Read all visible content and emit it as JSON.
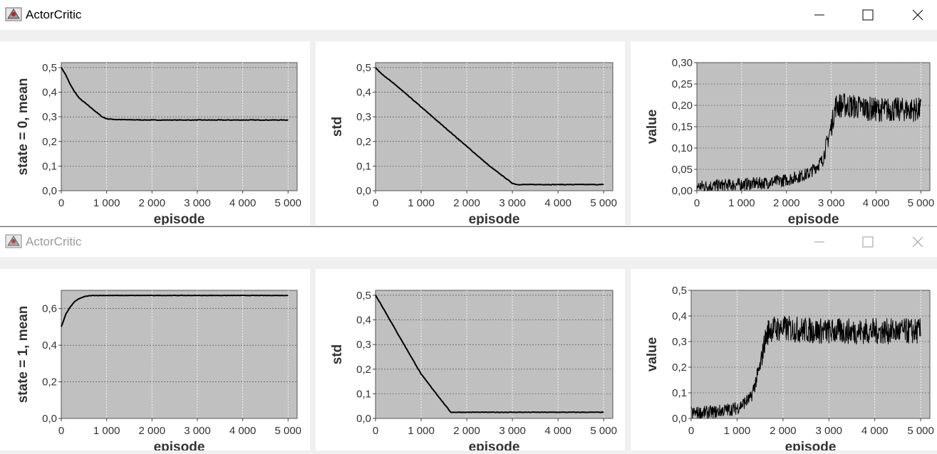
{
  "windows": [
    {
      "title": "ActorCritic",
      "active": true,
      "charts": [
        {
          "ylabel": "state = 0, mean",
          "xlabel": "episode",
          "yticks": [
            "0,0",
            "0,1",
            "0,2",
            "0,3",
            "0,4",
            "0,5"
          ],
          "ylim": [
            0,
            0.52
          ],
          "xticks": [
            "0",
            "1 000",
            "2 000",
            "3 000",
            "4 000",
            "5 000"
          ],
          "xlim": [
            0,
            5200
          ],
          "type": "line"
        },
        {
          "ylabel": "std",
          "xlabel": "episode",
          "yticks": [
            "0,0",
            "0,1",
            "0,2",
            "0,3",
            "0,4",
            "0,5"
          ],
          "ylim": [
            0,
            0.52
          ],
          "xticks": [
            "0",
            "1 000",
            "2 000",
            "3 000",
            "4 000",
            "5 000"
          ],
          "xlim": [
            0,
            5200
          ],
          "type": "line"
        },
        {
          "ylabel": "value",
          "xlabel": "episode",
          "yticks": [
            "0,00",
            "0,05",
            "0,10",
            "0,15",
            "0,20",
            "0,25",
            "0,30"
          ],
          "ylim": [
            0,
            0.3
          ],
          "xticks": [
            "0",
            "1 000",
            "2 000",
            "3 000",
            "4 000",
            "5 000"
          ],
          "xlim": [
            0,
            5200
          ],
          "type": "line"
        }
      ]
    },
    {
      "title": "ActorCritic",
      "active": false,
      "charts": [
        {
          "ylabel": "state = 1, mean",
          "xlabel": "episode",
          "yticks": [
            "0,0",
            "0,2",
            "0,4",
            "0,6"
          ],
          "ylim": [
            0,
            0.7
          ],
          "xticks": [
            "0",
            "1 000",
            "2 000",
            "3 000",
            "4 000",
            "5 000"
          ],
          "xlim": [
            0,
            5200
          ],
          "type": "line"
        },
        {
          "ylabel": "std",
          "xlabel": "episode",
          "yticks": [
            "0,0",
            "0,1",
            "0,2",
            "0,3",
            "0,4",
            "0,5"
          ],
          "ylim": [
            0,
            0.52
          ],
          "xticks": [
            "0",
            "1 000",
            "2 000",
            "3 000",
            "4 000",
            "5 000"
          ],
          "xlim": [
            0,
            5200
          ],
          "type": "line"
        },
        {
          "ylabel": "value",
          "xlabel": "episode",
          "yticks": [
            "0,0",
            "0,1",
            "0,2",
            "0,3",
            "0,4",
            "0,5"
          ],
          "ylim": [
            0,
            0.5
          ],
          "xticks": [
            "0",
            "1 000",
            "2 000",
            "3 000",
            "4 000",
            "5 000"
          ],
          "xlim": [
            0,
            5200
          ],
          "type": "line"
        }
      ]
    }
  ],
  "chart_data": [
    {
      "type": "line",
      "xlabel": "episode",
      "ylabel": "state = 0, mean",
      "ylim": [
        0,
        0.52
      ],
      "x": [
        0,
        100,
        200,
        300,
        400,
        500,
        600,
        700,
        800,
        900,
        1000,
        1200,
        1500,
        2000,
        2500,
        3000,
        4000,
        5000
      ],
      "values": [
        0.5,
        0.47,
        0.43,
        0.4,
        0.375,
        0.36,
        0.345,
        0.33,
        0.315,
        0.3,
        0.292,
        0.289,
        0.288,
        0.287,
        0.287,
        0.287,
        0.287,
        0.287
      ]
    },
    {
      "type": "line",
      "xlabel": "episode",
      "ylabel": "std",
      "ylim": [
        0,
        0.52
      ],
      "x": [
        0,
        100,
        500,
        1000,
        1500,
        2000,
        2500,
        3000,
        3100,
        5000
      ],
      "values": [
        0.5,
        0.48,
        0.42,
        0.34,
        0.26,
        0.18,
        0.1,
        0.03,
        0.025,
        0.025
      ]
    },
    {
      "type": "line",
      "xlabel": "episode",
      "ylabel": "value",
      "ylim": [
        0,
        0.3
      ],
      "x": [
        0,
        500,
        1000,
        1500,
        2000,
        2500,
        2800,
        3000,
        3100,
        3300,
        4000,
        5000
      ],
      "values": [
        0.01,
        0.012,
        0.015,
        0.018,
        0.025,
        0.04,
        0.07,
        0.15,
        0.2,
        0.2,
        0.19,
        0.19
      ],
      "noise": 0.02
    },
    {
      "type": "line",
      "xlabel": "episode",
      "ylabel": "state = 1, mean",
      "ylim": [
        0,
        0.7
      ],
      "x": [
        0,
        100,
        200,
        300,
        400,
        500,
        600,
        700,
        1000,
        2000,
        3000,
        4000,
        5000
      ],
      "values": [
        0.5,
        0.57,
        0.61,
        0.64,
        0.655,
        0.665,
        0.67,
        0.672,
        0.672,
        0.672,
        0.672,
        0.672,
        0.672
      ]
    },
    {
      "type": "line",
      "xlabel": "episode",
      "ylabel": "std",
      "ylim": [
        0,
        0.52
      ],
      "x": [
        0,
        100,
        500,
        1000,
        1500,
        1650,
        5000
      ],
      "values": [
        0.5,
        0.47,
        0.34,
        0.18,
        0.06,
        0.025,
        0.025
      ]
    },
    {
      "type": "line",
      "xlabel": "episode",
      "ylabel": "value",
      "ylim": [
        0,
        0.5
      ],
      "x": [
        0,
        500,
        1000,
        1300,
        1500,
        1600,
        1700,
        2000,
        3000,
        4000,
        5000
      ],
      "values": [
        0.02,
        0.025,
        0.04,
        0.08,
        0.2,
        0.3,
        0.35,
        0.35,
        0.34,
        0.34,
        0.34
      ],
      "noise": 0.035
    }
  ],
  "colors": {
    "plot_bg": "#c0c0c0",
    "line": "#000000",
    "grid": "#ffffff",
    "gridh": "#404040"
  }
}
